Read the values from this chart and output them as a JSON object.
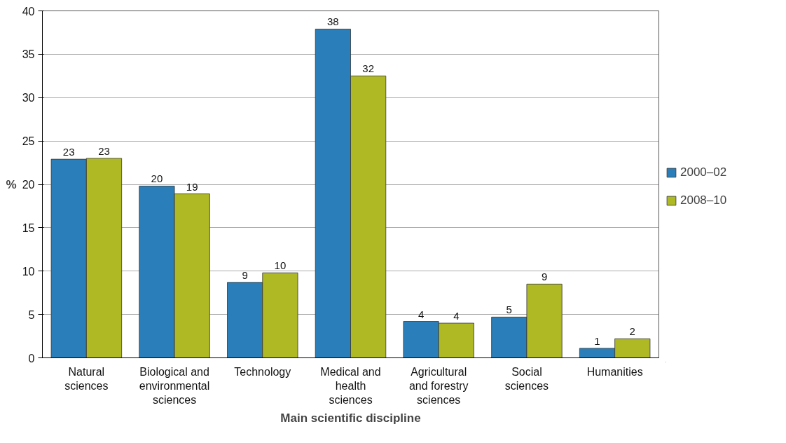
{
  "chart_data": {
    "type": "bar",
    "xlabel": "Main scientific discipline",
    "ylabel": "%",
    "categories": [
      "Natural sciences",
      "Biological and environmental sciences",
      "Technology",
      "Medical and health sciences",
      "Agricultural and forestry sciences",
      "Social sciences",
      "Humanities"
    ],
    "series": [
      {
        "name": "2000–02",
        "color": "#2a7fba",
        "values": [
          22.9,
          19.8,
          8.7,
          37.9,
          4.2,
          4.7,
          1.1
        ],
        "value_labels": [
          "23",
          "20",
          "9",
          "38",
          "4",
          "5",
          "1"
        ]
      },
      {
        "name": "2008–10",
        "color": "#afb924",
        "values": [
          23.0,
          18.9,
          9.8,
          32.5,
          4.0,
          8.5,
          2.2
        ],
        "value_labels": [
          "23",
          "19",
          "10",
          "32",
          "4",
          "9",
          "2"
        ]
      }
    ],
    "ylim": [
      0,
      40
    ],
    "yticks": [
      0,
      5,
      10,
      15,
      20,
      25,
      30,
      35,
      40
    ],
    "grid": "y",
    "legend": "right"
  }
}
